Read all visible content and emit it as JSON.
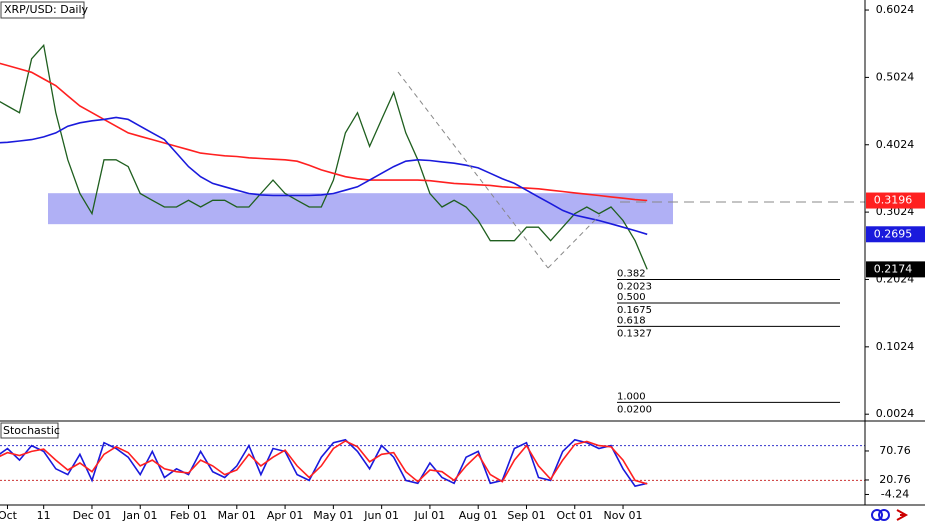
{
  "chart_data": [
    {
      "type": "line",
      "title": "XRP/USD: Daily",
      "categories": [
        null,
        "Oct",
        null,
        null,
        "11",
        null,
        null,
        null,
        "Dec 01",
        null,
        null,
        null,
        "Jan 01",
        null,
        null,
        null,
        "Feb 01",
        null,
        null,
        null,
        "Mar 01",
        null,
        null,
        null,
        "Apr 01",
        null,
        null,
        null,
        "May 01",
        null,
        null,
        null,
        "Jun 01",
        null,
        null,
        null,
        "Jul 01",
        null,
        null,
        null,
        "Aug 01",
        null,
        null,
        null,
        "Sep 01",
        null,
        null,
        null,
        "Oct 01",
        null,
        null,
        null,
        "Nov 01",
        null,
        null
      ],
      "series": [
        {
          "color": "#1f5f1f",
          "values": [
            0.47,
            0.46,
            0.45,
            0.53,
            0.55,
            0.45,
            0.38,
            0.33,
            0.3,
            0.38,
            0.38,
            0.37,
            0.33,
            0.32,
            0.31,
            0.31,
            0.32,
            0.31,
            0.32,
            0.32,
            0.31,
            0.31,
            0.33,
            0.35,
            0.33,
            0.32,
            0.31,
            0.31,
            0.35,
            0.42,
            0.45,
            0.4,
            0.44,
            0.48,
            0.42,
            0.38,
            0.33,
            0.31,
            0.32,
            0.31,
            0.29,
            0.26,
            0.26,
            0.26,
            0.28,
            0.28,
            0.26,
            0.28,
            0.3,
            0.31,
            0.3,
            0.31,
            0.29,
            0.26,
            0.2174
          ],
          "label_bg": "#000000"
        },
        {
          "color": "#ff2020",
          "values": [
            0.525,
            0.52,
            0.515,
            0.51,
            0.5,
            0.49,
            0.475,
            0.46,
            0.45,
            0.44,
            0.43,
            0.42,
            0.415,
            0.41,
            0.405,
            0.4,
            0.395,
            0.39,
            0.388,
            0.386,
            0.385,
            0.383,
            0.382,
            0.381,
            0.38,
            0.378,
            0.372,
            0.365,
            0.36,
            0.355,
            0.352,
            0.35,
            0.35,
            0.35,
            0.35,
            0.35,
            0.349,
            0.347,
            0.345,
            0.344,
            0.343,
            0.342,
            0.34,
            0.339,
            0.338,
            0.337,
            0.335,
            0.333,
            0.331,
            0.329,
            0.327,
            0.325,
            0.323,
            0.321,
            0.3196
          ],
          "label_bg": "#ff2020"
        },
        {
          "color": "#1a1adc",
          "values": [
            0.405,
            0.406,
            0.408,
            0.41,
            0.414,
            0.42,
            0.43,
            0.435,
            0.438,
            0.44,
            0.443,
            0.44,
            0.43,
            0.42,
            0.41,
            0.39,
            0.37,
            0.355,
            0.345,
            0.34,
            0.335,
            0.33,
            0.328,
            0.327,
            0.327,
            0.327,
            0.327,
            0.328,
            0.33,
            0.335,
            0.34,
            0.35,
            0.36,
            0.37,
            0.378,
            0.38,
            0.379,
            0.377,
            0.375,
            0.372,
            0.368,
            0.36,
            0.352,
            0.345,
            0.335,
            0.325,
            0.315,
            0.305,
            0.298,
            0.294,
            0.29,
            0.285,
            0.28,
            0.275,
            0.2695
          ],
          "label_bg": "#1a1adc"
        }
      ],
      "zone": {
        "from": 0.2845,
        "to": 0.3305,
        "color": "#b0b0f5"
      },
      "levels": [
        {
          "name": "0.382",
          "value": 0.2023
        },
        {
          "name": "0.500",
          "value": 0.1675
        },
        {
          "name": "0.618",
          "value": 0.1327
        },
        {
          "name": "1.000",
          "value": 0.02,
          "value_label": "0.0200"
        }
      ],
      "ylim": [
        -0.0077,
        0.6173
      ],
      "yticks": [
        0.6024,
        0.5024,
        0.4024,
        0.3024,
        0.2024,
        0.1024,
        0.0024
      ]
    },
    {
      "type": "line",
      "title": "Stochastic",
      "series": [
        {
          "color": "#1a1adc",
          "values": [
            60,
            75,
            55,
            80,
            70,
            40,
            30,
            65,
            20,
            85,
            75,
            60,
            30,
            70,
            25,
            40,
            30,
            70,
            35,
            25,
            45,
            80,
            30,
            75,
            70,
            30,
            20,
            60,
            85,
            90,
            70,
            40,
            80,
            60,
            20,
            15,
            50,
            25,
            15,
            60,
            70,
            15,
            20,
            75,
            85,
            25,
            20,
            70,
            90,
            85,
            75,
            80,
            40,
            10,
            15
          ]
        },
        {
          "color": "#ff2020",
          "values": [
            58,
            68,
            63,
            70,
            74,
            55,
            38,
            50,
            35,
            65,
            78,
            68,
            45,
            55,
            40,
            35,
            33,
            55,
            45,
            30,
            38,
            65,
            45,
            60,
            72,
            45,
            25,
            45,
            75,
            88,
            78,
            52,
            65,
            68,
            35,
            18,
            38,
            35,
            20,
            45,
            65,
            30,
            18,
            55,
            80,
            45,
            22,
            55,
            82,
            87,
            80,
            78,
            55,
            20,
            14
          ]
        }
      ],
      "hlines": [
        {
          "value": 80,
          "color": "#3333cc"
        },
        {
          "value": 20,
          "color": "#cc3333"
        }
      ],
      "ylim": [
        -22.4,
        120.7
      ],
      "yticks": [
        70.76,
        20.76,
        -4.24
      ]
    }
  ]
}
